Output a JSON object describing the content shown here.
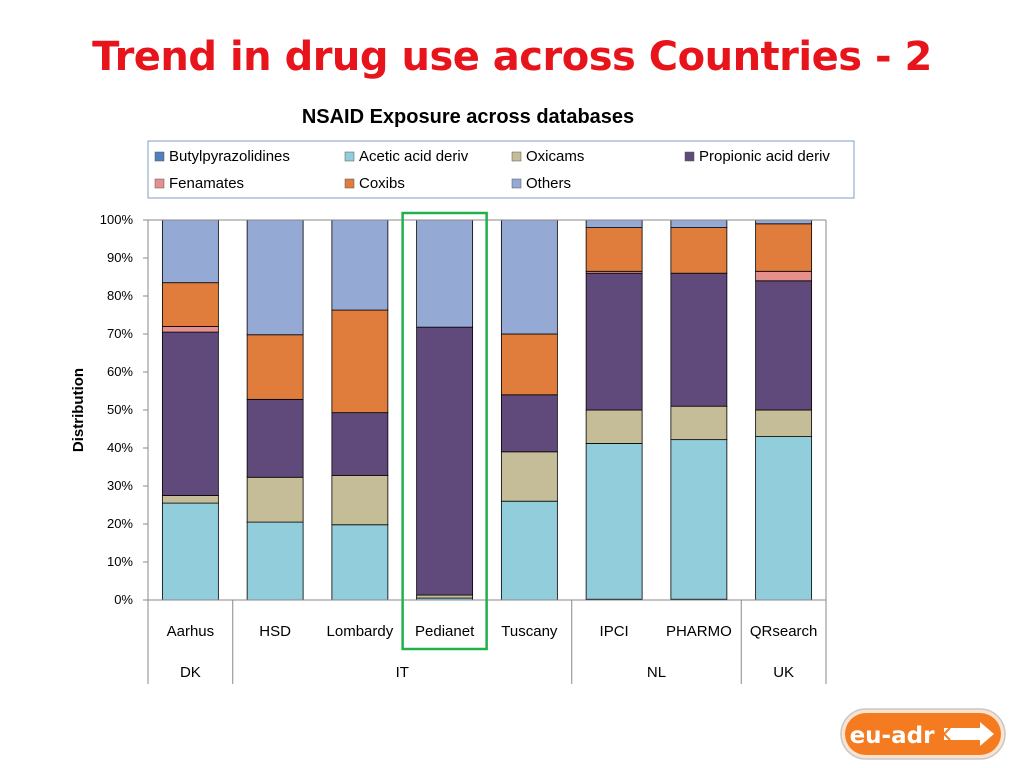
{
  "slide": {
    "title": "Trend in drug use across Countries - 2"
  },
  "logo": {
    "text": "eu-adr"
  },
  "chart_data": {
    "type": "bar",
    "stacked": true,
    "percent": true,
    "title": "NSAID Exposure across databases",
    "ylabel": "Distribution",
    "ylim": [
      0,
      100
    ],
    "yticks": [
      "0%",
      "10%",
      "20%",
      "30%",
      "40%",
      "50%",
      "60%",
      "70%",
      "80%",
      "90%",
      "100%"
    ],
    "grid": false,
    "legend_position": "top",
    "categories": [
      "Aarhus",
      "HSD",
      "Lombardy",
      "Pedianet",
      "Tuscany",
      "IPCI",
      "PHARMO",
      "QRsearch"
    ],
    "groups": [
      {
        "label": "DK",
        "members": [
          "Aarhus"
        ]
      },
      {
        "label": "IT",
        "members": [
          "HSD",
          "Lombardy",
          "Pedianet",
          "Tuscany"
        ]
      },
      {
        "label": "NL",
        "members": [
          "IPCI",
          "PHARMO"
        ]
      },
      {
        "label": "UK",
        "members": [
          "QRsearch"
        ]
      }
    ],
    "highlighted_category": "Pedianet",
    "highlight_color": "#22b04a",
    "series": [
      {
        "name": "Butylpyrazolidines",
        "color": "#4f81bd",
        "values": [
          0,
          0,
          0,
          0,
          0,
          0.2,
          0.2,
          0
        ]
      },
      {
        "name": "Acetic acid deriv",
        "color": "#92cddc",
        "values": [
          25.5,
          20.5,
          19.8,
          0.5,
          26,
          41,
          42,
          43
        ]
      },
      {
        "name": "Oxicams",
        "color": "#c4bd97",
        "values": [
          2,
          11.8,
          13,
          0.8,
          13,
          8.8,
          8.8,
          7
        ]
      },
      {
        "name": "Propionic acid deriv",
        "color": "#604a7b",
        "values": [
          43,
          20.5,
          16.5,
          70.5,
          15,
          36,
          35,
          34
        ]
      },
      {
        "name": "Fenamates",
        "color": "#e6908e",
        "values": [
          1.5,
          0,
          0,
          0,
          0,
          0.5,
          0,
          2.5
        ]
      },
      {
        "name": "Coxibs",
        "color": "#e07d3c",
        "values": [
          11.5,
          17,
          27,
          0,
          16,
          11.5,
          12,
          12.5
        ]
      },
      {
        "name": "Others",
        "color": "#95a9d5",
        "values": [
          16.5,
          30.2,
          23.7,
          28.2,
          30,
          2,
          2,
          1
        ]
      }
    ]
  }
}
